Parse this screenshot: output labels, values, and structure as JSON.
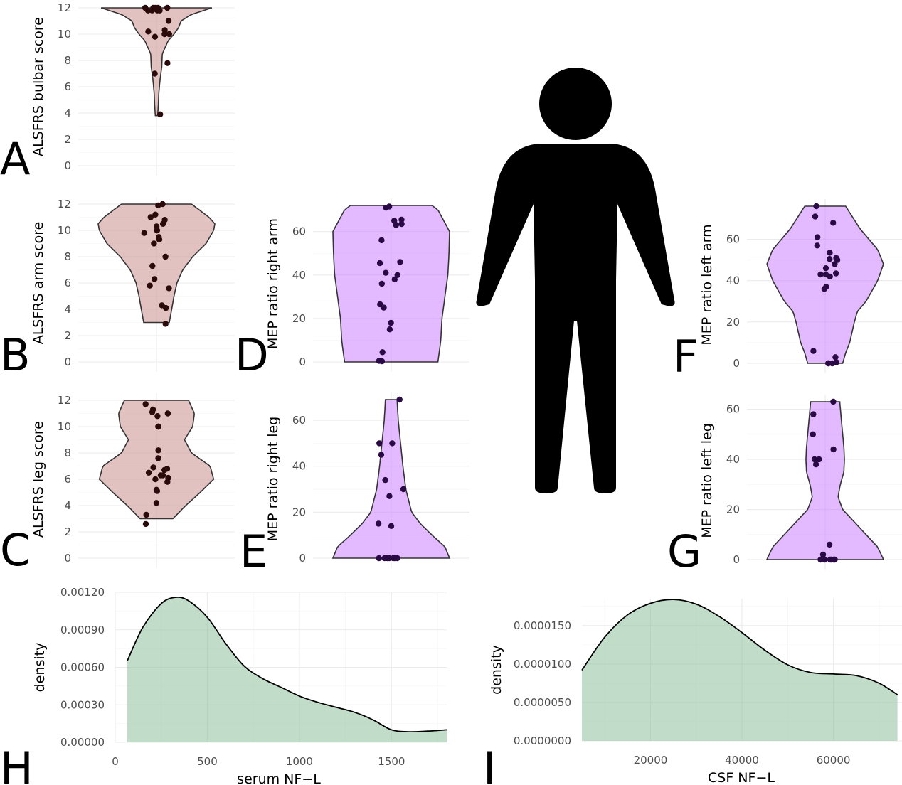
{
  "colors": {
    "alsfrs_fill": "#c9908c",
    "mep_fill": "#cc80ff",
    "density_fill": "#8fbf9f",
    "point": "#2a0a0a",
    "mep_point": "#2a0a45",
    "outline": "#333333",
    "figure": "#000000"
  },
  "icon": "person-silhouette-icon",
  "chart_data": [
    {
      "id": "A",
      "type": "violin",
      "letter": "A",
      "ylabel": "ALSFRS bulbar score",
      "ylim": [
        0,
        12
      ],
      "yticks": [
        0,
        2,
        4,
        6,
        8,
        10,
        12
      ],
      "points": [
        12,
        12,
        12,
        12,
        12,
        11.8,
        11.8,
        11.8,
        11.8,
        11,
        10.3,
        10.2,
        10,
        10,
        9.8,
        7.8,
        7,
        3.9
      ],
      "density": [
        [
          3.8,
          0.02
        ],
        [
          4.5,
          0.03
        ],
        [
          5.5,
          0.04
        ],
        [
          6.5,
          0.06
        ],
        [
          7.5,
          0.09
        ],
        [
          8.5,
          0.1
        ],
        [
          9.5,
          0.2
        ],
        [
          10,
          0.3
        ],
        [
          10.5,
          0.38
        ],
        [
          11,
          0.42
        ],
        [
          11.5,
          0.6
        ],
        [
          12,
          0.95
        ]
      ]
    },
    {
      "id": "B",
      "type": "violin",
      "letter": "B",
      "ylabel": "ALSFRS arm score",
      "ylim": [
        0,
        12
      ],
      "yticks": [
        0,
        2,
        4,
        6,
        8,
        10,
        12
      ],
      "points": [
        12,
        11.9,
        11.2,
        11,
        10.8,
        10.5,
        10.3,
        10,
        10,
        9.8,
        9.5,
        9.3,
        9,
        8,
        7.3,
        6.3,
        5.8,
        5.6,
        4.3,
        4.1,
        2.9
      ],
      "density": [
        [
          3,
          0.22
        ],
        [
          4,
          0.26
        ],
        [
          5,
          0.3
        ],
        [
          6,
          0.35
        ],
        [
          7,
          0.45
        ],
        [
          8,
          0.62
        ],
        [
          9,
          0.85
        ],
        [
          10,
          0.98
        ],
        [
          10.5,
          1.0
        ],
        [
          11,
          0.9
        ],
        [
          12,
          0.6
        ]
      ]
    },
    {
      "id": "C",
      "type": "violin",
      "letter": "C",
      "ylabel": "ALSFRS leg score",
      "ylim": [
        0,
        12
      ],
      "yticks": [
        0,
        2,
        4,
        6,
        8,
        10,
        12
      ],
      "points": [
        11.7,
        11.3,
        11.1,
        11,
        10.8,
        10,
        10,
        8.2,
        7.6,
        6.9,
        6.8,
        6.7,
        6.5,
        6.3,
        6.3,
        6.1,
        6,
        5.8,
        5.2,
        5.1,
        4.2,
        3.3,
        2.6
      ],
      "density": [
        [
          3,
          0.28
        ],
        [
          4,
          0.5
        ],
        [
          5,
          0.75
        ],
        [
          6,
          0.98
        ],
        [
          7,
          0.92
        ],
        [
          8,
          0.6
        ],
        [
          9,
          0.48
        ],
        [
          10,
          0.62
        ],
        [
          11,
          0.65
        ],
        [
          12,
          0.55
        ]
      ]
    },
    {
      "id": "D",
      "type": "violin",
      "letter": "D",
      "ylabel": "MEP ratio right arm",
      "ylim": [
        0,
        72
      ],
      "yticks": [
        0,
        20,
        40,
        60
      ],
      "points": [
        71.5,
        71,
        65.5,
        65,
        63.5,
        63,
        56,
        46,
        45.5,
        41,
        40,
        38,
        36,
        26.5,
        25,
        18,
        15,
        4.5,
        0.5,
        0.3
      ],
      "density": [
        [
          0,
          0.8
        ],
        [
          10,
          0.85
        ],
        [
          20,
          0.87
        ],
        [
          30,
          0.92
        ],
        [
          40,
          0.97
        ],
        [
          50,
          0.99
        ],
        [
          60,
          1.0
        ],
        [
          70,
          0.8
        ],
        [
          72,
          0.7
        ]
      ]
    },
    {
      "id": "E",
      "type": "violin",
      "letter": "E",
      "ylabel": "MEP ratio right leg",
      "ylim": [
        0,
        69
      ],
      "yticks": [
        0,
        20,
        40,
        60
      ],
      "points": [
        69,
        50,
        50,
        45,
        34,
        30,
        27,
        15,
        14,
        0,
        0,
        0,
        0,
        0,
        0,
        0
      ],
      "density": [
        [
          0,
          1.0
        ],
        [
          5,
          0.92
        ],
        [
          10,
          0.7
        ],
        [
          15,
          0.5
        ],
        [
          20,
          0.35
        ],
        [
          30,
          0.25
        ],
        [
          40,
          0.2
        ],
        [
          50,
          0.16
        ],
        [
          60,
          0.12
        ],
        [
          69,
          0.1
        ]
      ]
    },
    {
      "id": "F",
      "type": "violin",
      "letter": "F",
      "ylabel": "MEP ratio left arm",
      "ylim": [
        0,
        76
      ],
      "yticks": [
        0,
        20,
        40,
        60
      ],
      "points": [
        76,
        71,
        68,
        61,
        57,
        53.5,
        51,
        50.5,
        50,
        48,
        46,
        43.5,
        43,
        43,
        42,
        37,
        36,
        6,
        3,
        0.5,
        0,
        0,
        0
      ],
      "density": [
        [
          0,
          0.3
        ],
        [
          5,
          0.35
        ],
        [
          10,
          0.42
        ],
        [
          20,
          0.5
        ],
        [
          25,
          0.55
        ],
        [
          30,
          0.7
        ],
        [
          40,
          0.9
        ],
        [
          48,
          1.0
        ],
        [
          55,
          0.9
        ],
        [
          65,
          0.6
        ],
        [
          76,
          0.35
        ]
      ]
    },
    {
      "id": "G",
      "type": "violin",
      "letter": "G",
      "ylabel": "MEP ratio left leg",
      "ylim": [
        0,
        63
      ],
      "yticks": [
        0,
        20,
        40,
        60
      ],
      "points": [
        63,
        58,
        50,
        44,
        40,
        40,
        38,
        6,
        2,
        0,
        0,
        0,
        0,
        0,
        0,
        0
      ],
      "density": [
        [
          0,
          1.0
        ],
        [
          5,
          0.9
        ],
        [
          10,
          0.7
        ],
        [
          15,
          0.5
        ],
        [
          20,
          0.3
        ],
        [
          25,
          0.22
        ],
        [
          30,
          0.26
        ],
        [
          35,
          0.32
        ],
        [
          40,
          0.33
        ],
        [
          45,
          0.32
        ],
        [
          50,
          0.3
        ],
        [
          55,
          0.28
        ],
        [
          63,
          0.25
        ]
      ]
    },
    {
      "id": "H",
      "type": "area",
      "letter": "H",
      "xlabel": "serum NF−L",
      "ylabel": "density",
      "xlim": [
        0,
        1800
      ],
      "ylim": [
        0,
        0.0012
      ],
      "xticks": [
        0,
        500,
        1000,
        1500
      ],
      "yticks": [
        0,
        0.0003,
        0.0006,
        0.0009,
        0.0012
      ],
      "ytick_labels": [
        "0.00000",
        "0.00030",
        "0.00060",
        "0.00090",
        "0.00120"
      ],
      "x": [
        65,
        150,
        250,
        330,
        400,
        500,
        600,
        700,
        800,
        900,
        1000,
        1100,
        1200,
        1300,
        1400,
        1500,
        1600,
        1700,
        1800
      ],
      "y": [
        0.00065,
        0.00092,
        0.00111,
        0.00116,
        0.00113,
        0.001,
        0.00079,
        0.00061,
        0.00051,
        0.00044,
        0.00037,
        0.00032,
        0.00028,
        0.00024,
        0.00018,
        0.0001,
        8.5e-05,
        9e-05,
        0.0001
      ]
    },
    {
      "id": "I",
      "type": "area",
      "letter": "I",
      "xlabel": "CSF NF−L",
      "ylabel": "density",
      "xlim": [
        5000,
        75000
      ],
      "ylim": [
        0,
        1.85e-05
      ],
      "xticks": [
        20000,
        40000,
        60000
      ],
      "yticks": [
        0,
        5e-06,
        1e-05,
        1.5e-05
      ],
      "ytick_labels": [
        "0.0000000",
        "0.0000050",
        "0.0000100",
        "0.0000150"
      ],
      "x": [
        5000,
        10000,
        15000,
        20000,
        25000,
        30000,
        35000,
        40000,
        45000,
        50000,
        55000,
        60000,
        65000,
        70000,
        74000
      ],
      "y": [
        9.2e-06,
        1.35e-05,
        1.64e-05,
        1.79e-05,
        1.84e-05,
        1.78e-05,
        1.62e-05,
        1.41e-05,
        1.18e-05,
        9.9e-06,
        8.9e-06,
        8.7e-06,
        8.5e-06,
        7.5e-06,
        6e-06
      ]
    }
  ]
}
